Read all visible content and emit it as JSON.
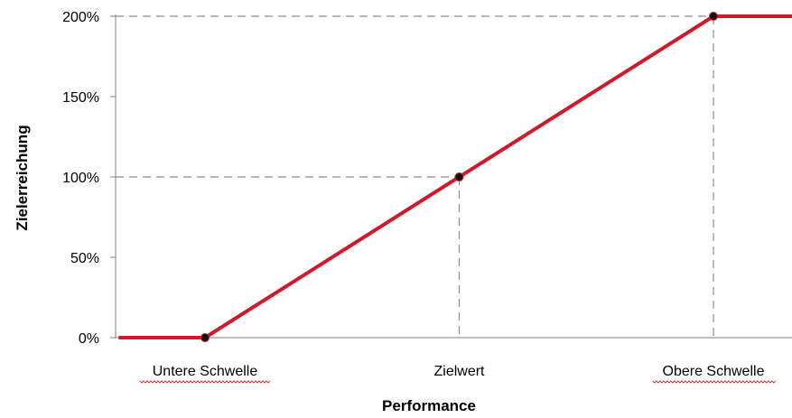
{
  "chart_data": {
    "type": "line",
    "title": "",
    "xlabel": "Performance",
    "ylabel": "Zielerreichung",
    "x_ticks": [
      {
        "label": "Untere Schwelle",
        "value": 0
      },
      {
        "label": "Zielwert",
        "value": 1
      },
      {
        "label": "Obere Schwelle",
        "value": 2
      }
    ],
    "y_ticks": [
      "0%",
      "50%",
      "100%",
      "150%",
      "200%"
    ],
    "ylim": [
      0,
      200
    ],
    "series": [
      {
        "color": "#d0192b",
        "points": [
          {
            "x": -0.34,
            "y": 0
          },
          {
            "x": 0,
            "y": 0
          },
          {
            "x": 1,
            "y": 100
          },
          {
            "x": 2,
            "y": 200
          },
          {
            "x": 2.31,
            "y": 200
          }
        ],
        "markers": [
          {
            "x": 0,
            "y": 0
          },
          {
            "x": 1,
            "y": 100
          },
          {
            "x": 2,
            "y": 200
          }
        ]
      }
    ],
    "reference_lines": [
      {
        "axis": "y",
        "value": 100,
        "to_x": 1
      },
      {
        "axis": "y",
        "value": 200,
        "to_x": 2
      },
      {
        "axis": "x",
        "value": 1,
        "to_y": 100
      },
      {
        "axis": "x",
        "value": 2,
        "to_y": 200
      }
    ],
    "grid": false,
    "legend": "none"
  }
}
